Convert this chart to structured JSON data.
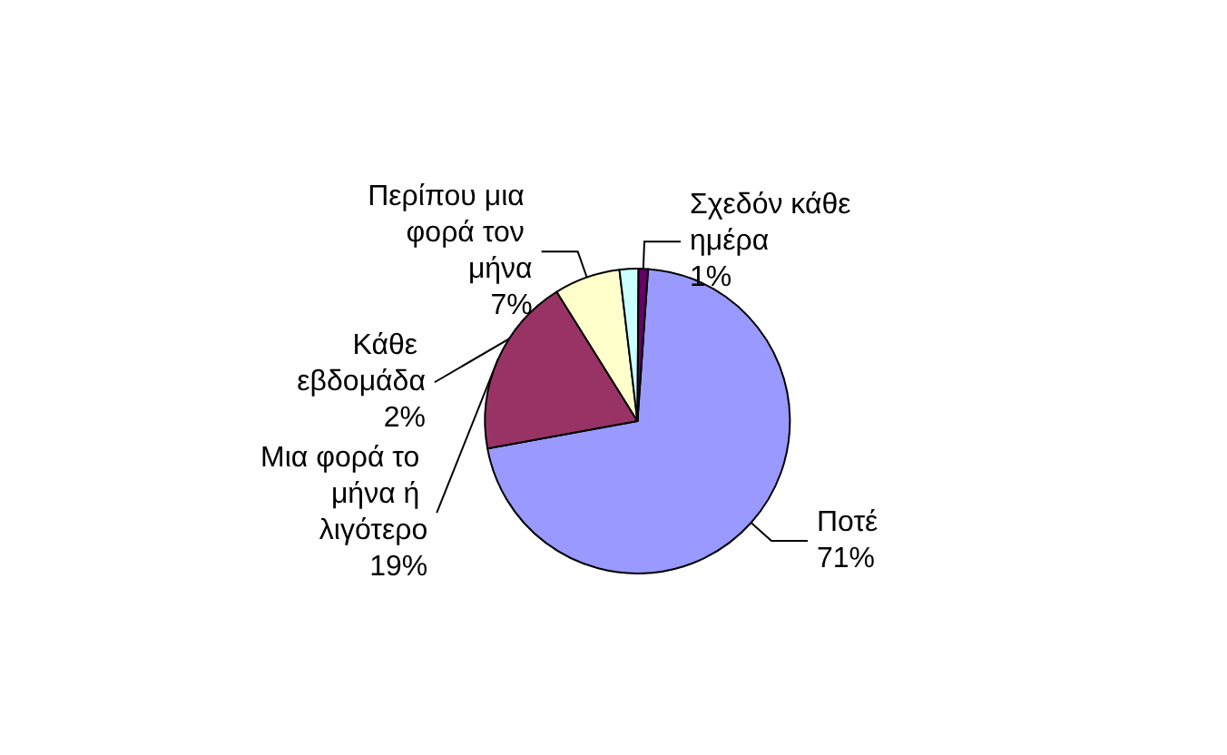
{
  "chart_data": {
    "type": "pie",
    "categories": [
      "Ποτέ",
      "Μια φορά το μήνα ή λιγότερο",
      "Περίπου μια φορά τον μήνα",
      "Κάθε εβδομάδα",
      "Σχεδόν κάθε ημέρα"
    ],
    "values": [
      71,
      19,
      7,
      2,
      1
    ],
    "colors": [
      "#9999ff",
      "#993366",
      "#ffffcc",
      "#ccffff",
      "#660066"
    ],
    "value_labels": [
      "71%",
      "19%",
      "7%",
      "2%",
      "1%"
    ],
    "legend": false
  }
}
